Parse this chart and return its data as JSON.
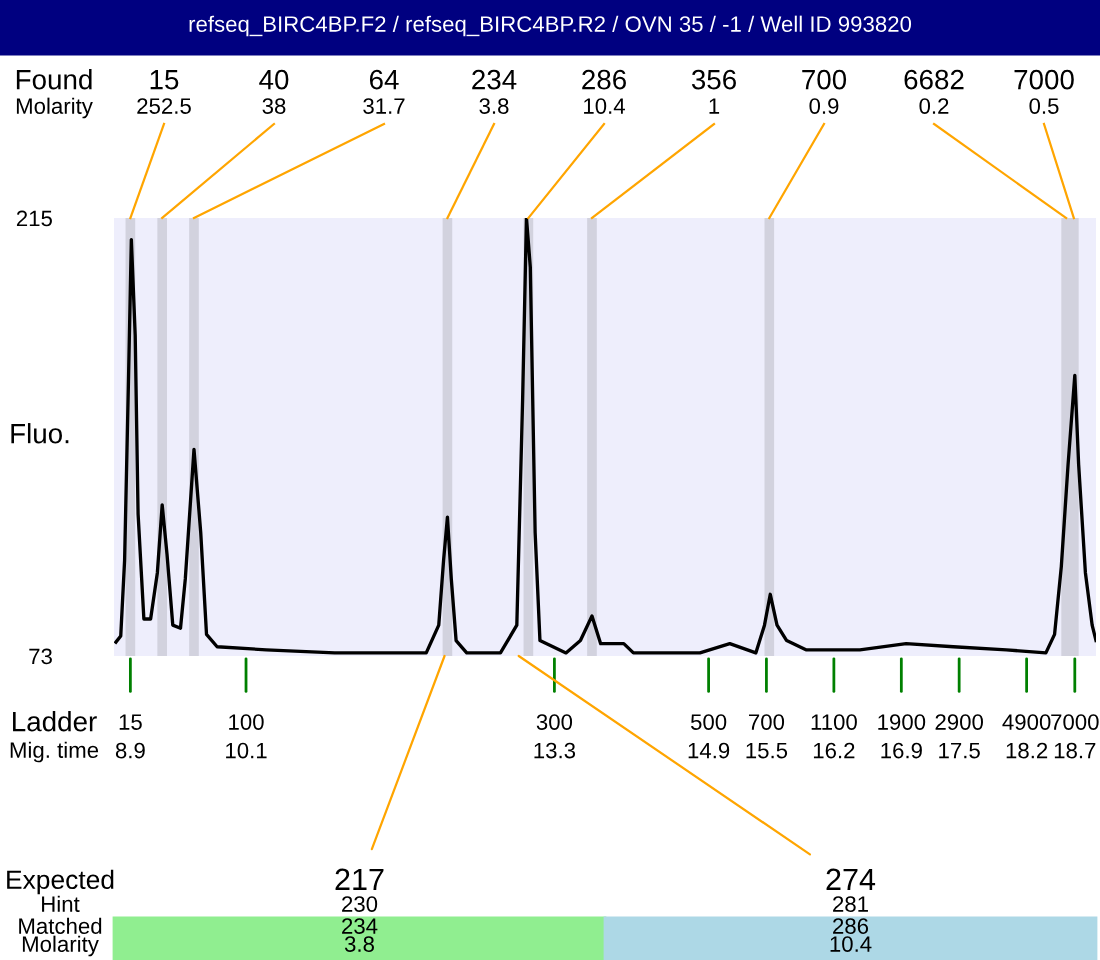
{
  "chart_data": {
    "type": "line",
    "title": "refseq_BIRC4BP.F2 / refseq_BIRC4BP.R2 / OVN 35 / -1 / Well ID 993820",
    "ylabel": "Fluo.",
    "x": [
      8.75,
      8.8,
      8.84,
      8.88,
      8.91,
      8.95,
      8.98,
      9.04,
      9.11,
      9.18,
      9.23,
      9.28,
      9.34,
      9.42,
      9.47,
      9.56,
      9.63,
      9.69,
      9.8,
      10.31,
      11.02,
      11.97,
      12.1,
      12.15,
      12.19,
      12.23,
      12.28,
      12.39,
      12.74,
      12.91,
      12.97,
      13.01,
      13.05,
      13.1,
      13.15,
      13.42,
      13.57,
      13.69,
      13.78,
      14.02,
      14.12,
      14.81,
      15.12,
      15.39,
      15.48,
      15.54,
      15.61,
      15.71,
      15.91,
      16.47,
      16.95,
      17.44,
      17.99,
      18.4,
      18.49,
      18.56,
      18.63,
      18.7,
      18.74,
      18.81,
      18.88,
      18.92
    ],
    "series": [
      {
        "color": "#000000",
        "values": [
          77.5,
          79.5,
          104,
          162,
          208,
          177,
          119,
          85,
          85,
          100,
          122,
          106,
          83,
          82,
          98,
          140,
          113,
          80,
          76,
          75,
          74,
          74,
          83,
          104,
          118,
          98,
          78,
          74,
          74,
          83,
          156,
          215,
          199,
          113,
          78,
          74,
          78,
          86,
          77,
          77,
          74,
          74,
          77,
          74,
          83,
          93,
          83,
          78,
          75,
          75,
          77,
          76,
          75,
          74,
          80,
          102,
          135,
          164,
          135,
          100,
          83,
          78
        ]
      }
    ],
    "xlim": [
      8.73,
      18.92
    ],
    "ylim": [
      73,
      215
    ],
    "yticks": [
      73,
      215
    ],
    "xticks": [
      8.9,
      10.1,
      13.3,
      14.9,
      15.5,
      16.2,
      16.9,
      17.5,
      18.2,
      18.7
    ],
    "bands": [
      {
        "axis": "x",
        "from": 8.85,
        "to": 8.95,
        "label": "15\n252.5",
        "color": "#d2d2de"
      },
      {
        "axis": "x",
        "from": 9.18,
        "to": 9.28,
        "label": "40\n38",
        "color": "#d2d2de"
      },
      {
        "axis": "x",
        "from": 9.51,
        "to": 9.61,
        "label": "64\n31.7",
        "color": "#d2d2de"
      },
      {
        "axis": "x",
        "from": 12.14,
        "to": 12.24,
        "label": "234\n3.8",
        "color": "#d2d2de"
      },
      {
        "axis": "x",
        "from": 12.98,
        "to": 13.08,
        "label": "286\n10.4",
        "color": "#d2d2de"
      },
      {
        "axis": "x",
        "from": 13.64,
        "to": 13.74,
        "label": "356\n1",
        "color": "#d2d2de"
      },
      {
        "axis": "x",
        "from": 15.48,
        "to": 15.58,
        "label": "700\n0.9",
        "color": "#d2d2de"
      },
      {
        "axis": "x",
        "from": 18.56,
        "to": 18.66,
        "label": "6682\n0.2",
        "color": "#d2d2de"
      },
      {
        "axis": "x",
        "from": 18.64,
        "to": 18.74,
        "label": "7000\n0.5",
        "color": "#d2d2de"
      }
    ],
    "annotations": [
      "Found",
      "Molarity",
      "Ladder",
      "Mig. time",
      "Expected",
      "Hint",
      "Matched",
      "Molarity",
      {
        "text": "15",
        "x": 8.9,
        "y": 73
      },
      {
        "text": "100",
        "x": 10.1,
        "y": 73
      },
      {
        "text": "300",
        "x": 13.3,
        "y": 73
      },
      {
        "text": "500",
        "x": 14.9,
        "y": 73
      },
      {
        "text": "700",
        "x": 15.5,
        "y": 73
      },
      {
        "text": "1100",
        "x": 16.2,
        "y": 73
      },
      {
        "text": "1900",
        "x": 16.9,
        "y": 73
      },
      {
        "text": "2900",
        "x": 17.5,
        "y": 73
      },
      {
        "text": "4900",
        "x": 18.2,
        "y": 73
      },
      {
        "text": "7000",
        "x": 18.7,
        "y": 73
      },
      {
        "text": "217",
        "x": 12.16,
        "y": 73
      },
      "230",
      "234",
      "3.8",
      {
        "text": "274",
        "x": 12.93,
        "y": 73
      },
      "281",
      "286",
      "10.4"
    ]
  }
}
